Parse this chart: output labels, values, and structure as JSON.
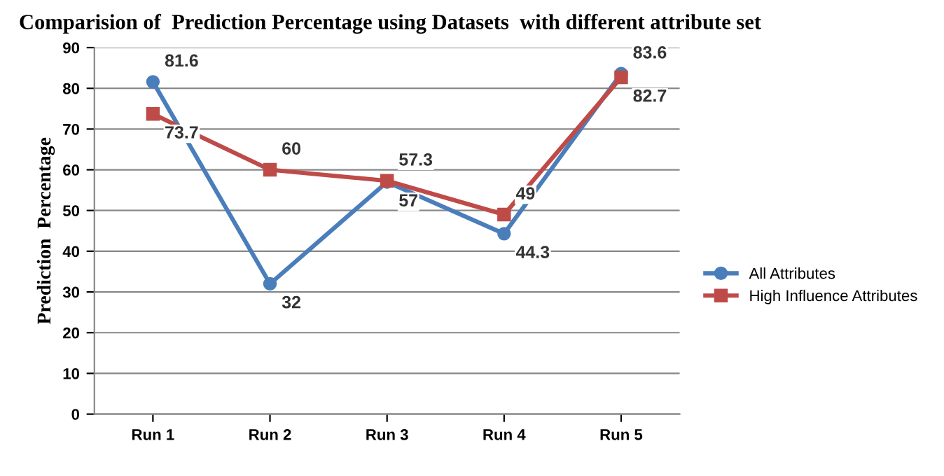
{
  "chart_data": {
    "type": "line",
    "title": "Comparision of  Prediction Percentage using Datasets  with different attribute set",
    "ylabel": "Prediction  Percentage",
    "categories": [
      "Run 1",
      "Run 2",
      "Run 3",
      "Run 4",
      "Run 5"
    ],
    "series": [
      {
        "name": "All Attributes",
        "color": "#4a7ebb",
        "marker": "circle",
        "values": [
          81.6,
          32,
          57,
          44.3,
          83.6
        ]
      },
      {
        "name": "High Influence Attributes",
        "color": "#be4b48",
        "marker": "square",
        "values": [
          73.7,
          60,
          57.3,
          49,
          82.7
        ]
      }
    ],
    "ylim": [
      0,
      90
    ],
    "yticks": [
      0,
      10,
      20,
      30,
      40,
      50,
      60,
      70,
      80,
      90
    ],
    "grid": "y",
    "legend": "right",
    "data_labels": true,
    "line_style": "solid"
  }
}
